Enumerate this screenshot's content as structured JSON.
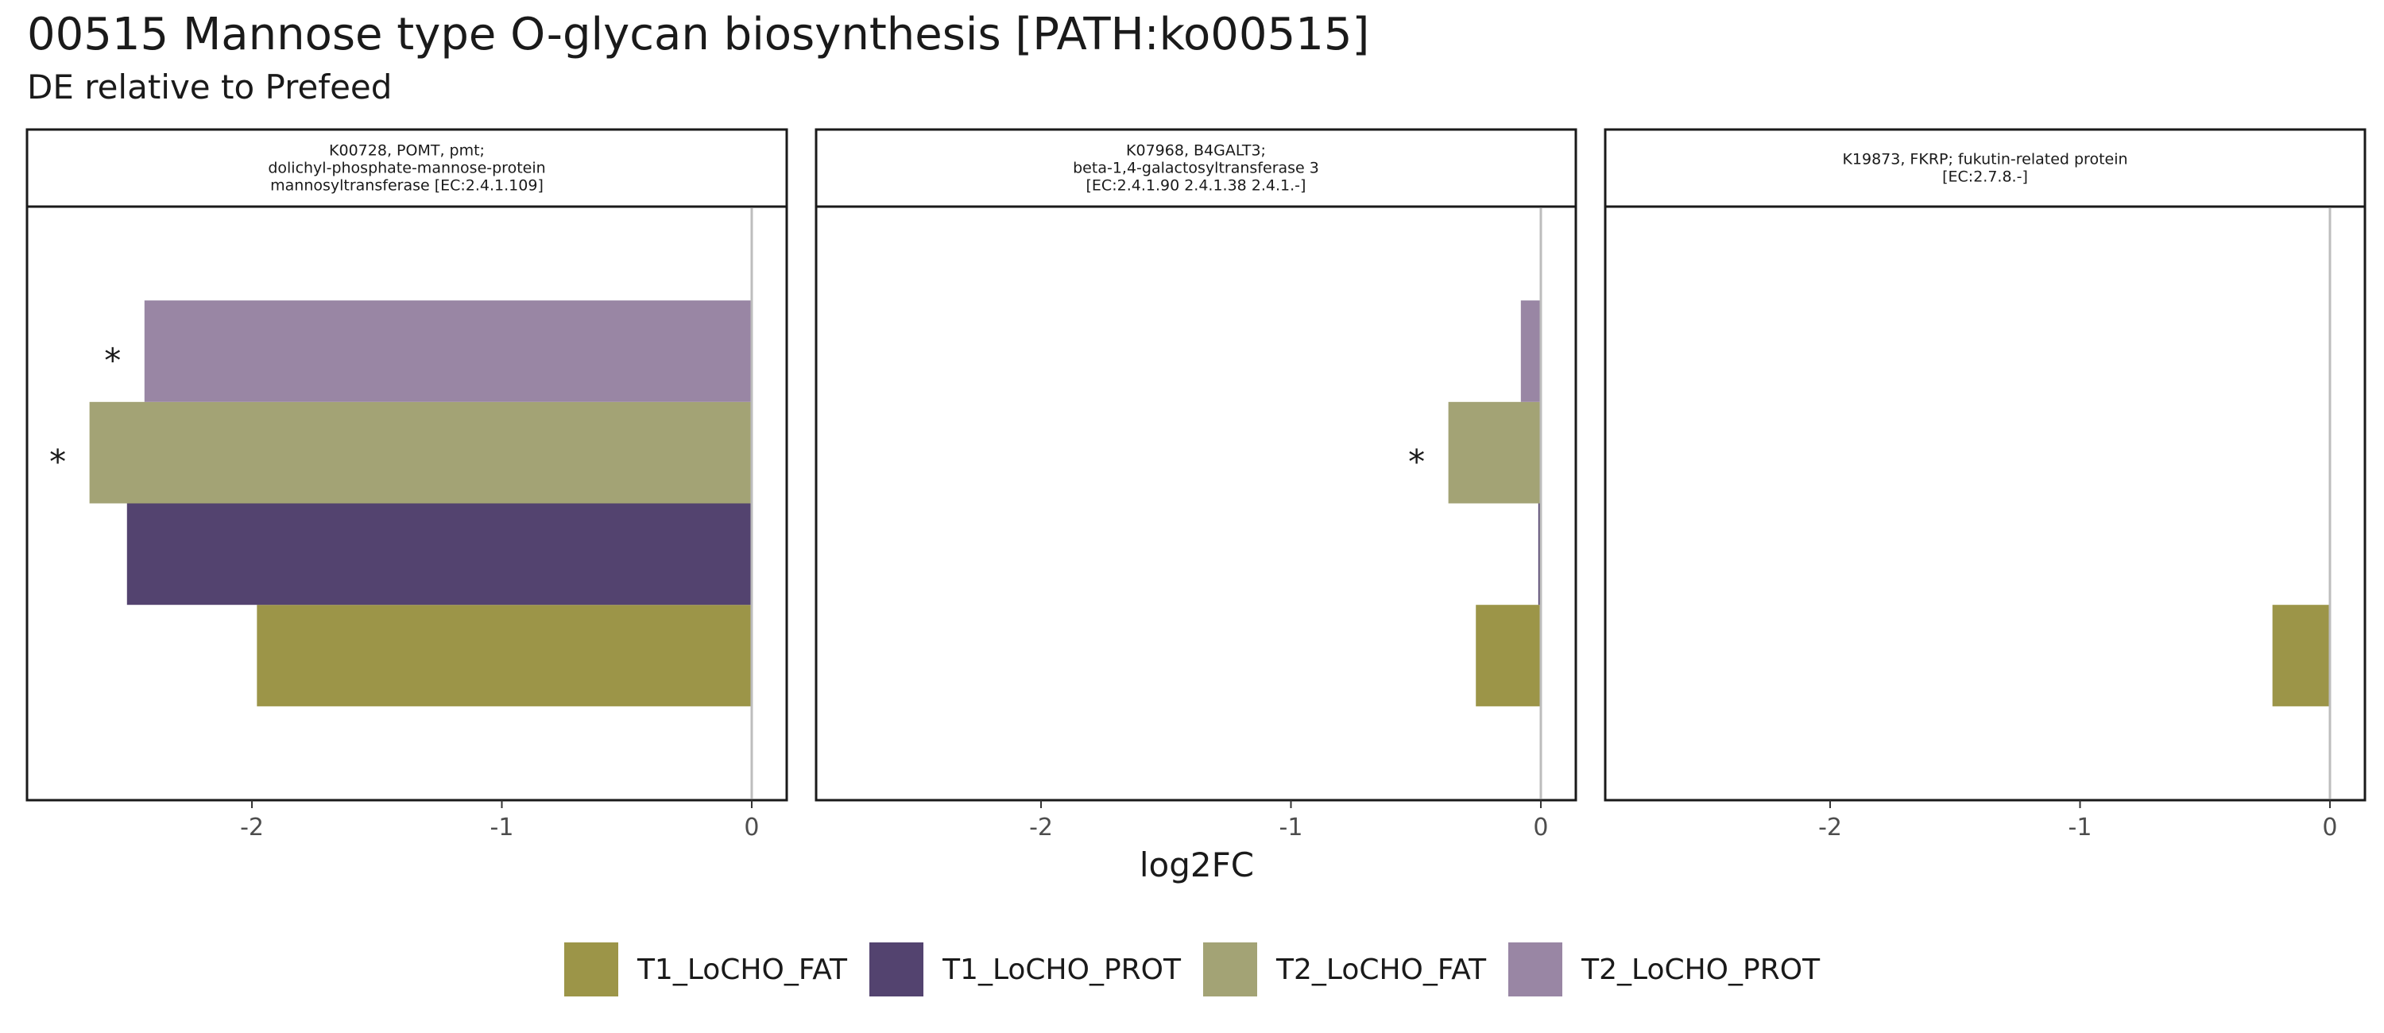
{
  "chart_data": {
    "type": "bar",
    "orientation": "horizontal",
    "title": "00515 Mannose type O-glycan biosynthesis [PATH:ko00515]",
    "subtitle": "DE relative to Prefeed",
    "xlabel": "log2FC",
    "xlim": [
      -2.9,
      0.14
    ],
    "xticks": [
      -2,
      -1,
      0
    ],
    "xtick_labels": [
      "-2",
      "-1",
      "0"
    ],
    "grid": false,
    "legend_position": "bottom",
    "series": [
      {
        "name": "T1_LoCHO_FAT",
        "color": "#9c9548"
      },
      {
        "name": "T1_LoCHO_PROT",
        "color": "#53436f"
      },
      {
        "name": "T2_LoCHO_FAT",
        "color": "#a3a375"
      },
      {
        "name": "T2_LoCHO_PROT",
        "color": "#9986a4"
      }
    ],
    "panels": [
      {
        "strip": [
          "K00728, POMT, pmt;",
          "dolichyl-phosphate-mannose-protein",
          "mannosyltransferase [EC:2.4.1.109]"
        ],
        "values": [
          -1.98,
          -2.5,
          -2.65,
          -2.43
        ],
        "significant": [
          false,
          false,
          true,
          true
        ],
        "significance_mark": "*"
      },
      {
        "strip": [
          "K07968, B4GALT3;",
          "beta-1,4-galactosyltransferase 3",
          "[EC:2.4.1.90 2.4.1.38 2.4.1.-]"
        ],
        "values": [
          -0.26,
          -0.01,
          -0.37,
          -0.08
        ],
        "significant": [
          false,
          false,
          true,
          false
        ],
        "significance_mark": "*"
      },
      {
        "strip": [
          "K19873, FKRP; fukutin-related protein",
          "[EC:2.7.8.-]"
        ],
        "values": [
          -0.23,
          null,
          null,
          null
        ],
        "significant": [
          false,
          false,
          false,
          false
        ],
        "significance_mark": "*"
      }
    ]
  }
}
